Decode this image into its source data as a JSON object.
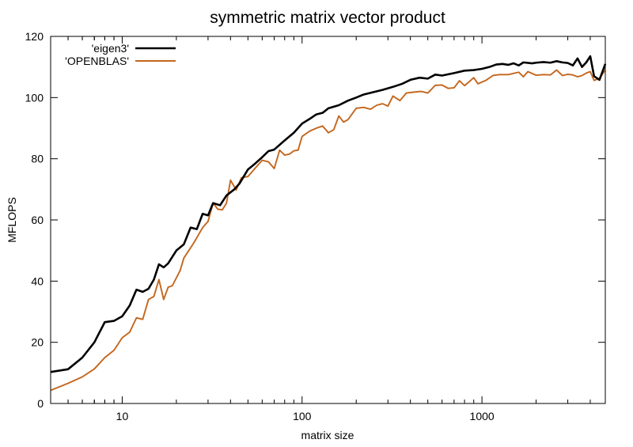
{
  "chart_data": {
    "type": "line",
    "title": "symmetric matrix vector product",
    "xlabel": "matrix size",
    "ylabel": "MFLOPS",
    "xscale": "log",
    "xlim": [
      4,
      4850
    ],
    "ylim": [
      0,
      120
    ],
    "x_ticks": [
      10,
      100,
      1000
    ],
    "y_ticks": [
      0,
      20,
      40,
      60,
      80,
      100,
      120
    ],
    "grid": false,
    "legend_position": "top-left",
    "series": [
      {
        "name": "'eigen3'",
        "color": "#000000",
        "points": [
          [
            4,
            10.3
          ],
          [
            5,
            11.2
          ],
          [
            6,
            15
          ],
          [
            7,
            20
          ],
          [
            8,
            26.6
          ],
          [
            9,
            27
          ],
          [
            10,
            28.5
          ],
          [
            11,
            32
          ],
          [
            12,
            37.2
          ],
          [
            13,
            36.5
          ],
          [
            14,
            37.5
          ],
          [
            15,
            40.5
          ],
          [
            16,
            45.5
          ],
          [
            17,
            44.5
          ],
          [
            18,
            45.8
          ],
          [
            20,
            50
          ],
          [
            22,
            52
          ],
          [
            24,
            57.5
          ],
          [
            26,
            57
          ],
          [
            28,
            62
          ],
          [
            30,
            61.5
          ],
          [
            32,
            65.5
          ],
          [
            35,
            64.8
          ],
          [
            38,
            68
          ],
          [
            42,
            70
          ],
          [
            45,
            72
          ],
          [
            50,
            76.5
          ],
          [
            55,
            78.5
          ],
          [
            60,
            80.5
          ],
          [
            65,
            82.5
          ],
          [
            70,
            83
          ],
          [
            80,
            86
          ],
          [
            90,
            88.5
          ],
          [
            100,
            91.5
          ],
          [
            110,
            93
          ],
          [
            120,
            94.5
          ],
          [
            130,
            95
          ],
          [
            140,
            96.5
          ],
          [
            160,
            97.5
          ],
          [
            180,
            99
          ],
          [
            200,
            100
          ],
          [
            220,
            101
          ],
          [
            250,
            101.8
          ],
          [
            280,
            102.5
          ],
          [
            320,
            103.5
          ],
          [
            360,
            104.5
          ],
          [
            400,
            105.8
          ],
          [
            450,
            106.5
          ],
          [
            500,
            106.2
          ],
          [
            550,
            107.5
          ],
          [
            600,
            107.2
          ],
          [
            700,
            108
          ],
          [
            800,
            108.8
          ],
          [
            900,
            109
          ],
          [
            1000,
            109.4
          ],
          [
            1100,
            110
          ],
          [
            1200,
            110.8
          ],
          [
            1300,
            111
          ],
          [
            1400,
            110.7
          ],
          [
            1500,
            111.2
          ],
          [
            1600,
            110.5
          ],
          [
            1700,
            111.5
          ],
          [
            1900,
            111.2
          ],
          [
            2000,
            111.4
          ],
          [
            2200,
            111.6
          ],
          [
            2400,
            111.4
          ],
          [
            2600,
            111.9
          ],
          [
            2800,
            111.5
          ],
          [
            3000,
            111.3
          ],
          [
            3200,
            110.5
          ],
          [
            3400,
            112.8
          ],
          [
            3600,
            110
          ],
          [
            3800,
            111.5
          ],
          [
            4000,
            113.5
          ],
          [
            4200,
            107
          ],
          [
            4500,
            105.8
          ],
          [
            4850,
            111
          ]
        ]
      },
      {
        "name": "'OPENBLAS'",
        "color": "#c4661d",
        "points": [
          [
            4,
            4.3
          ],
          [
            5,
            6.6
          ],
          [
            6,
            8.7
          ],
          [
            7,
            11.3
          ],
          [
            8,
            15
          ],
          [
            9,
            17.4
          ],
          [
            10,
            21.5
          ],
          [
            11,
            23.3
          ],
          [
            12,
            28
          ],
          [
            13,
            27.5
          ],
          [
            14,
            34
          ],
          [
            15,
            35
          ],
          [
            16,
            40.5
          ],
          [
            17,
            34
          ],
          [
            18,
            38
          ],
          [
            19,
            38.5
          ],
          [
            21,
            43.5
          ],
          [
            22,
            47.5
          ],
          [
            25,
            52.5
          ],
          [
            28,
            57.5
          ],
          [
            30,
            59.5
          ],
          [
            32,
            65.5
          ],
          [
            34,
            63.5
          ],
          [
            36,
            63.3
          ],
          [
            38,
            65.5
          ],
          [
            40,
            73
          ],
          [
            43,
            69.8
          ],
          [
            46,
            73.8
          ],
          [
            50,
            74.2
          ],
          [
            55,
            77
          ],
          [
            60,
            79.5
          ],
          [
            65,
            79
          ],
          [
            70,
            76.8
          ],
          [
            75,
            82.8
          ],
          [
            80,
            81.2
          ],
          [
            85,
            81.5
          ],
          [
            90,
            82.6
          ],
          [
            95,
            82.8
          ],
          [
            100,
            87.3
          ],
          [
            110,
            89
          ],
          [
            120,
            90
          ],
          [
            130,
            90.7
          ],
          [
            140,
            88.5
          ],
          [
            150,
            89.5
          ],
          [
            160,
            94
          ],
          [
            170,
            92
          ],
          [
            180,
            92.8
          ],
          [
            200,
            96.5
          ],
          [
            220,
            96.8
          ],
          [
            240,
            96.2
          ],
          [
            260,
            97.5
          ],
          [
            280,
            98
          ],
          [
            300,
            97.2
          ],
          [
            320,
            100.5
          ],
          [
            350,
            99
          ],
          [
            380,
            101.5
          ],
          [
            420,
            101.8
          ],
          [
            460,
            102
          ],
          [
            500,
            101.5
          ],
          [
            550,
            104
          ],
          [
            600,
            104.1
          ],
          [
            650,
            103
          ],
          [
            700,
            103.2
          ],
          [
            750,
            105.5
          ],
          [
            800,
            103.9
          ],
          [
            850,
            105.2
          ],
          [
            900,
            106.5
          ],
          [
            950,
            104.5
          ],
          [
            1050,
            105.6
          ],
          [
            1150,
            107.2
          ],
          [
            1250,
            107.5
          ],
          [
            1400,
            107.5
          ],
          [
            1600,
            108.3
          ],
          [
            1700,
            106.8
          ],
          [
            1800,
            108.5
          ],
          [
            2000,
            107.3
          ],
          [
            2200,
            107.5
          ],
          [
            2400,
            107.4
          ],
          [
            2600,
            109
          ],
          [
            2800,
            107.2
          ],
          [
            3000,
            107.6
          ],
          [
            3200,
            107.4
          ],
          [
            3400,
            106.8
          ],
          [
            3600,
            107.2
          ],
          [
            3800,
            108
          ],
          [
            4000,
            108.5
          ],
          [
            4200,
            105.6
          ],
          [
            4500,
            106.3
          ],
          [
            4850,
            109
          ]
        ]
      }
    ]
  }
}
